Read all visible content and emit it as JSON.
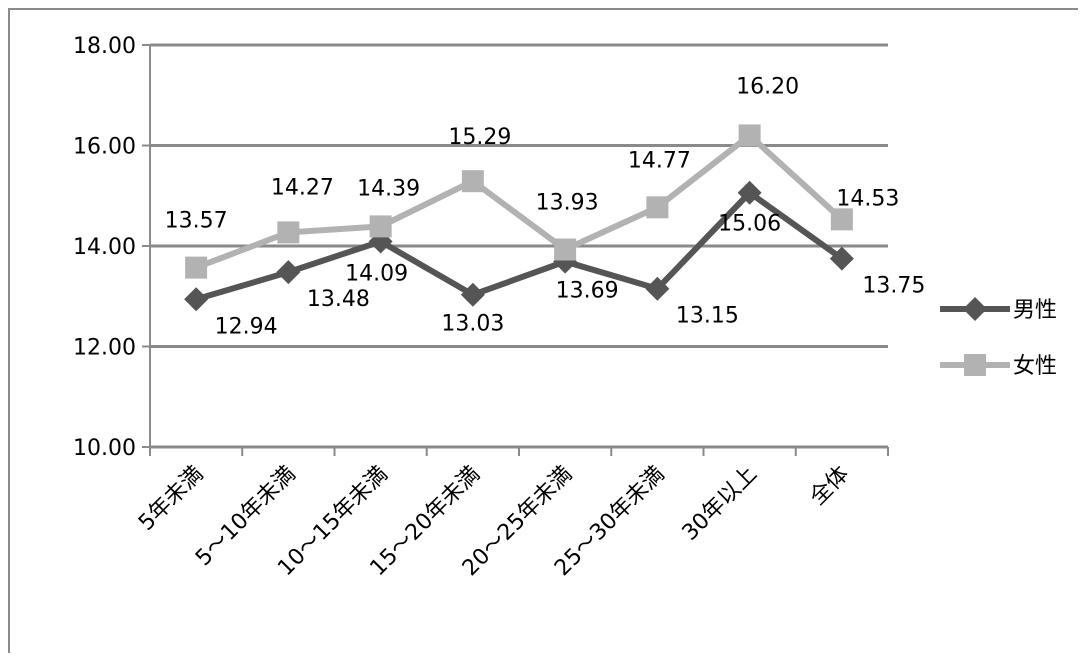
{
  "chart_data": {
    "type": "line",
    "title": "",
    "xlabel": "",
    "ylabel": "",
    "ylim": [
      10,
      18
    ],
    "yticks": [
      "10.00",
      "12.00",
      "14.00",
      "16.00",
      "18.00"
    ],
    "categories": [
      "5年未満",
      "5～10年未満",
      "10～15年未満",
      "15～20年未満",
      "20～25年未満",
      "25～30年未満",
      "30年以上",
      "全体"
    ],
    "grid": true,
    "legend_position": "right",
    "series": [
      {
        "name": "男性",
        "values": [
          12.94,
          13.48,
          14.09,
          13.03,
          13.69,
          13.15,
          15.06,
          13.75
        ],
        "labels": [
          "12.94",
          "13.48",
          "14.09",
          "13.03",
          "13.69",
          "13.15",
          "15.06",
          "13.75"
        ],
        "color": "#555555",
        "marker": "diamond"
      },
      {
        "name": "女性",
        "values": [
          13.57,
          14.27,
          14.39,
          15.29,
          13.93,
          14.77,
          16.2,
          14.53
        ],
        "labels": [
          "13.57",
          "14.27",
          "14.39",
          "15.29",
          "13.93",
          "14.77",
          "16.20",
          "14.53"
        ],
        "color": "#b2b2b2",
        "marker": "square"
      }
    ],
    "grid_color": "#8a8a8a"
  }
}
